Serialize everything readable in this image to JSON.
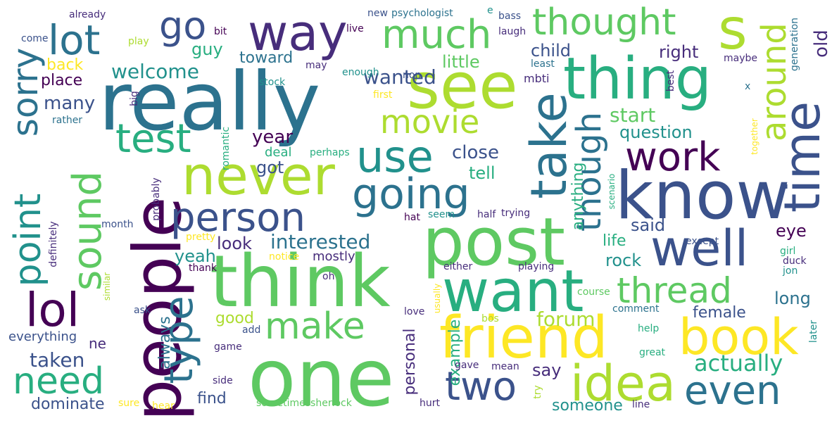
{
  "palette": {
    "purple": "#440154",
    "indigo": "#472d7b",
    "blue": "#3b528b",
    "steel": "#2c728e",
    "teal": "#21918c",
    "green": "#28ae80",
    "lime": "#5ec962",
    "yellowgreen": "#addc30",
    "yellow": "#fde725"
  },
  "words": [
    {
      "text": "really"
    },
    {
      "text": "think"
    },
    {
      "text": "one"
    },
    {
      "text": "people"
    },
    {
      "text": "post"
    },
    {
      "text": "know"
    },
    {
      "text": "see"
    },
    {
      "text": "thing"
    },
    {
      "text": "want"
    },
    {
      "text": "friend"
    },
    {
      "text": "never"
    },
    {
      "text": "way"
    },
    {
      "text": "s"
    },
    {
      "text": "take"
    },
    {
      "text": "time"
    },
    {
      "text": "well"
    },
    {
      "text": "book"
    },
    {
      "text": "idea"
    },
    {
      "text": "person"
    },
    {
      "text": "going"
    },
    {
      "text": "use"
    },
    {
      "text": "much"
    },
    {
      "text": "lot"
    },
    {
      "text": "go"
    },
    {
      "text": "thought"
    },
    {
      "text": "work"
    },
    {
      "text": "make"
    },
    {
      "text": "two"
    },
    {
      "text": "even"
    },
    {
      "text": "type"
    },
    {
      "text": "point"
    },
    {
      "text": "sound"
    },
    {
      "text": "sorry"
    },
    {
      "text": "lol"
    },
    {
      "text": "need"
    },
    {
      "text": "test"
    },
    {
      "text": "movie"
    },
    {
      "text": "thread"
    },
    {
      "text": "though"
    },
    {
      "text": "around"
    },
    {
      "text": "actually"
    },
    {
      "text": "interested"
    },
    {
      "text": "welcome"
    },
    {
      "text": "wanted"
    },
    {
      "text": "little"
    },
    {
      "text": "child"
    },
    {
      "text": "right"
    },
    {
      "text": "old"
    },
    {
      "text": "guy"
    },
    {
      "text": "toward"
    },
    {
      "text": "back"
    },
    {
      "text": "place"
    },
    {
      "text": "many"
    },
    {
      "text": "year"
    },
    {
      "text": "close"
    },
    {
      "text": "start"
    },
    {
      "text": "question"
    },
    {
      "text": "got"
    },
    {
      "text": "tell"
    },
    {
      "text": "said"
    },
    {
      "text": "eye"
    },
    {
      "text": "look"
    },
    {
      "text": "yeah"
    },
    {
      "text": "life"
    },
    {
      "text": "rock"
    },
    {
      "text": "long"
    },
    {
      "text": "female"
    },
    {
      "text": "forum"
    },
    {
      "text": "good"
    },
    {
      "text": "taken"
    },
    {
      "text": "always"
    },
    {
      "text": "say"
    },
    {
      "text": "example"
    },
    {
      "text": "personal"
    },
    {
      "text": "someone"
    },
    {
      "text": "find"
    },
    {
      "text": "dominate"
    },
    {
      "text": "anything"
    },
    {
      "text": "deal"
    },
    {
      "text": "mostly"
    },
    {
      "text": "everything"
    },
    {
      "text": "ne"
    },
    {
      "text": "thank"
    },
    {
      "text": "already"
    },
    {
      "text": "come"
    },
    {
      "text": "play"
    },
    {
      "text": "bit"
    },
    {
      "text": "live"
    },
    {
      "text": "new"
    },
    {
      "text": "psychologist"
    },
    {
      "text": "e"
    },
    {
      "text": "bass"
    },
    {
      "text": "laugh"
    },
    {
      "text": "generation"
    },
    {
      "text": "maybe"
    },
    {
      "text": "may"
    },
    {
      "text": "enough"
    },
    {
      "text": "non"
    },
    {
      "text": "mbti"
    },
    {
      "text": "least"
    },
    {
      "text": "best"
    },
    {
      "text": "stock"
    },
    {
      "text": "first"
    },
    {
      "text": "big"
    },
    {
      "text": "rather"
    },
    {
      "text": "romantic"
    },
    {
      "text": "perhaps"
    },
    {
      "text": "together"
    },
    {
      "text": "x"
    },
    {
      "text": "probably"
    },
    {
      "text": "month"
    },
    {
      "text": "definitely"
    },
    {
      "text": "pretty"
    },
    {
      "text": "hat"
    },
    {
      "text": "seem"
    },
    {
      "text": "half"
    },
    {
      "text": "trying"
    },
    {
      "text": "scenario"
    },
    {
      "text": "except"
    },
    {
      "text": "girl"
    },
    {
      "text": "ask"
    },
    {
      "text": "notice"
    },
    {
      "text": "oh"
    },
    {
      "text": "either"
    },
    {
      "text": "playing"
    },
    {
      "text": "duck"
    },
    {
      "text": "jon"
    },
    {
      "text": "similar"
    },
    {
      "text": "add"
    },
    {
      "text": "love"
    },
    {
      "text": "usually"
    },
    {
      "text": "course"
    },
    {
      "text": "comment"
    },
    {
      "text": "bos"
    },
    {
      "text": "help"
    },
    {
      "text": "later"
    },
    {
      "text": "game"
    },
    {
      "text": "gave"
    },
    {
      "text": "mean"
    },
    {
      "text": "great"
    },
    {
      "text": "side"
    },
    {
      "text": "try"
    },
    {
      "text": "sure"
    },
    {
      "text": "hear"
    },
    {
      "text": "sometimessherlock"
    },
    {
      "text": "hurt"
    },
    {
      "text": "line"
    }
  ]
}
